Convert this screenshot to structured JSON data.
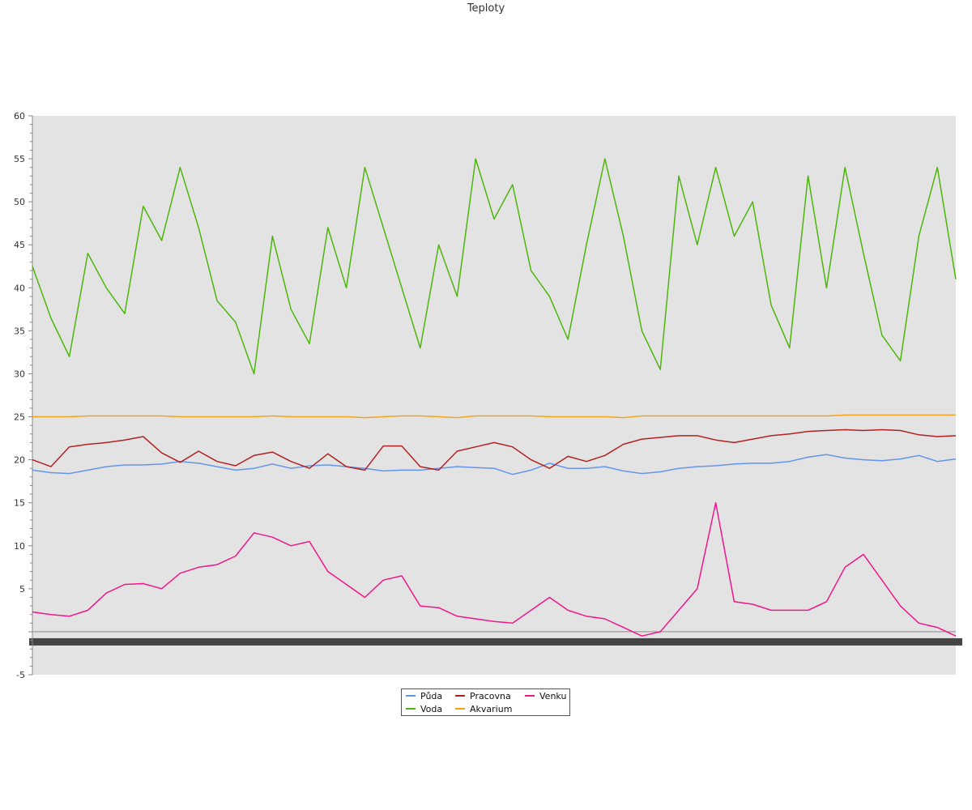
{
  "chart_data": {
    "type": "line",
    "title": "Teploty",
    "xlabel": "",
    "ylabel": "",
    "ylim": [
      -5,
      60
    ],
    "yticks": [
      -5,
      5,
      10,
      15,
      20,
      25,
      30,
      35,
      40,
      45,
      50,
      55,
      60
    ],
    "grid": false,
    "legend_position": "bottom-center",
    "x": [
      0,
      2,
      4,
      6,
      8,
      10,
      12,
      14,
      16,
      18,
      20,
      22,
      24,
      26,
      28,
      30,
      32,
      34,
      36,
      38,
      40,
      42,
      44,
      46,
      48,
      50,
      52,
      54,
      56,
      58,
      60,
      62,
      64,
      66,
      68,
      70,
      72,
      74,
      76,
      78,
      80,
      82,
      84,
      86,
      88,
      90,
      92,
      94,
      96,
      98,
      100
    ],
    "series": [
      {
        "name": "Půda",
        "color": "#6495ed",
        "values": [
          18.8,
          18.5,
          18.4,
          18.8,
          19.2,
          19.4,
          19.4,
          19.5,
          19.8,
          19.6,
          19.2,
          18.8,
          19.0,
          19.5,
          19.0,
          19.3,
          19.4,
          19.2,
          19.0,
          18.7,
          18.8,
          18.8,
          19.0,
          19.2,
          19.1,
          19.0,
          18.3,
          18.8,
          19.6,
          19.0,
          19.0,
          19.2,
          18.7,
          18.4,
          18.6,
          19.0,
          19.2,
          19.3,
          19.5,
          19.6,
          19.6,
          19.8,
          20.3,
          20.6,
          20.2,
          20.0,
          19.9,
          20.1,
          20.5,
          19.8,
          20.1
        ]
      },
      {
        "name": "Voda",
        "color": "#4cb70a",
        "values": [
          42.5,
          36.5,
          32.0,
          44.0,
          40.0,
          37.0,
          49.5,
          45.5,
          54.0,
          47.0,
          38.5,
          36.0,
          30.0,
          46.0,
          37.5,
          33.5,
          47.0,
          40.0,
          54.0,
          47.0,
          40.0,
          33.0,
          45.0,
          39.0,
          55.0,
          48.0,
          52.0,
          42.0,
          39.0,
          34.0,
          45.0,
          55.0,
          46.0,
          35.0,
          30.5,
          53.0,
          45.0,
          54.0,
          46.0,
          50.0,
          38.0,
          33.0,
          53.0,
          40.0,
          54.0,
          44.0,
          34.5,
          31.5,
          46.0,
          54.0,
          41.0
        ]
      },
      {
        "name": "Pracovna",
        "color": "#b22222",
        "values": [
          20.0,
          19.2,
          21.5,
          21.8,
          22.0,
          22.3,
          22.7,
          20.8,
          19.7,
          21.0,
          19.8,
          19.3,
          20.5,
          20.9,
          19.8,
          19.0,
          20.7,
          19.2,
          18.8,
          21.6,
          21.6,
          19.2,
          18.8,
          21.0,
          21.5,
          22.0,
          21.5,
          20.0,
          19.0,
          20.4,
          19.8,
          20.5,
          21.8,
          22.4,
          22.6,
          22.8,
          22.8,
          22.3,
          22.0,
          22.4,
          22.8,
          23.0,
          23.3,
          23.4,
          23.5,
          23.4,
          23.5,
          23.4,
          22.9,
          22.7,
          22.8
        ]
      },
      {
        "name": "Akvarium",
        "color": "#f2a51c",
        "values": [
          25.0,
          25.0,
          25.0,
          25.1,
          25.1,
          25.1,
          25.1,
          25.1,
          25.0,
          25.0,
          25.0,
          25.0,
          25.0,
          25.1,
          25.0,
          25.0,
          25.0,
          25.0,
          24.9,
          25.0,
          25.1,
          25.1,
          25.0,
          24.9,
          25.1,
          25.1,
          25.1,
          25.1,
          25.0,
          25.0,
          25.0,
          25.0,
          24.9,
          25.1,
          25.1,
          25.1,
          25.1,
          25.1,
          25.1,
          25.1,
          25.1,
          25.1,
          25.1,
          25.1,
          25.2,
          25.2,
          25.2,
          25.2,
          25.2,
          25.2,
          25.2
        ]
      },
      {
        "name": "Venku",
        "color": "#f0168c",
        "values": [
          2.3,
          2.0,
          1.8,
          2.5,
          4.5,
          5.5,
          5.6,
          5.0,
          6.8,
          7.5,
          7.8,
          8.8,
          11.5,
          11.0,
          10.0,
          10.5,
          7.0,
          5.5,
          4.0,
          6.0,
          6.5,
          3.0,
          2.8,
          1.8,
          1.5,
          1.2,
          1.0,
          2.5,
          4.0,
          2.5,
          1.8,
          1.5,
          0.5,
          -0.5,
          0.0,
          2.5,
          5.0,
          15.0,
          3.5,
          3.2,
          2.5,
          2.5,
          2.5,
          3.5,
          7.5,
          9.0,
          6.0,
          3.0,
          1.0,
          0.5,
          -0.5
        ]
      }
    ]
  },
  "legend": {
    "items": [
      {
        "label": "Půda",
        "color": "#6495ed"
      },
      {
        "label": "Voda",
        "color": "#4cb70a"
      },
      {
        "label": "Pracovna",
        "color": "#b22222"
      },
      {
        "label": "Akvarium",
        "color": "#f2a51c"
      },
      {
        "label": "Venku",
        "color": "#f0168c"
      }
    ]
  }
}
